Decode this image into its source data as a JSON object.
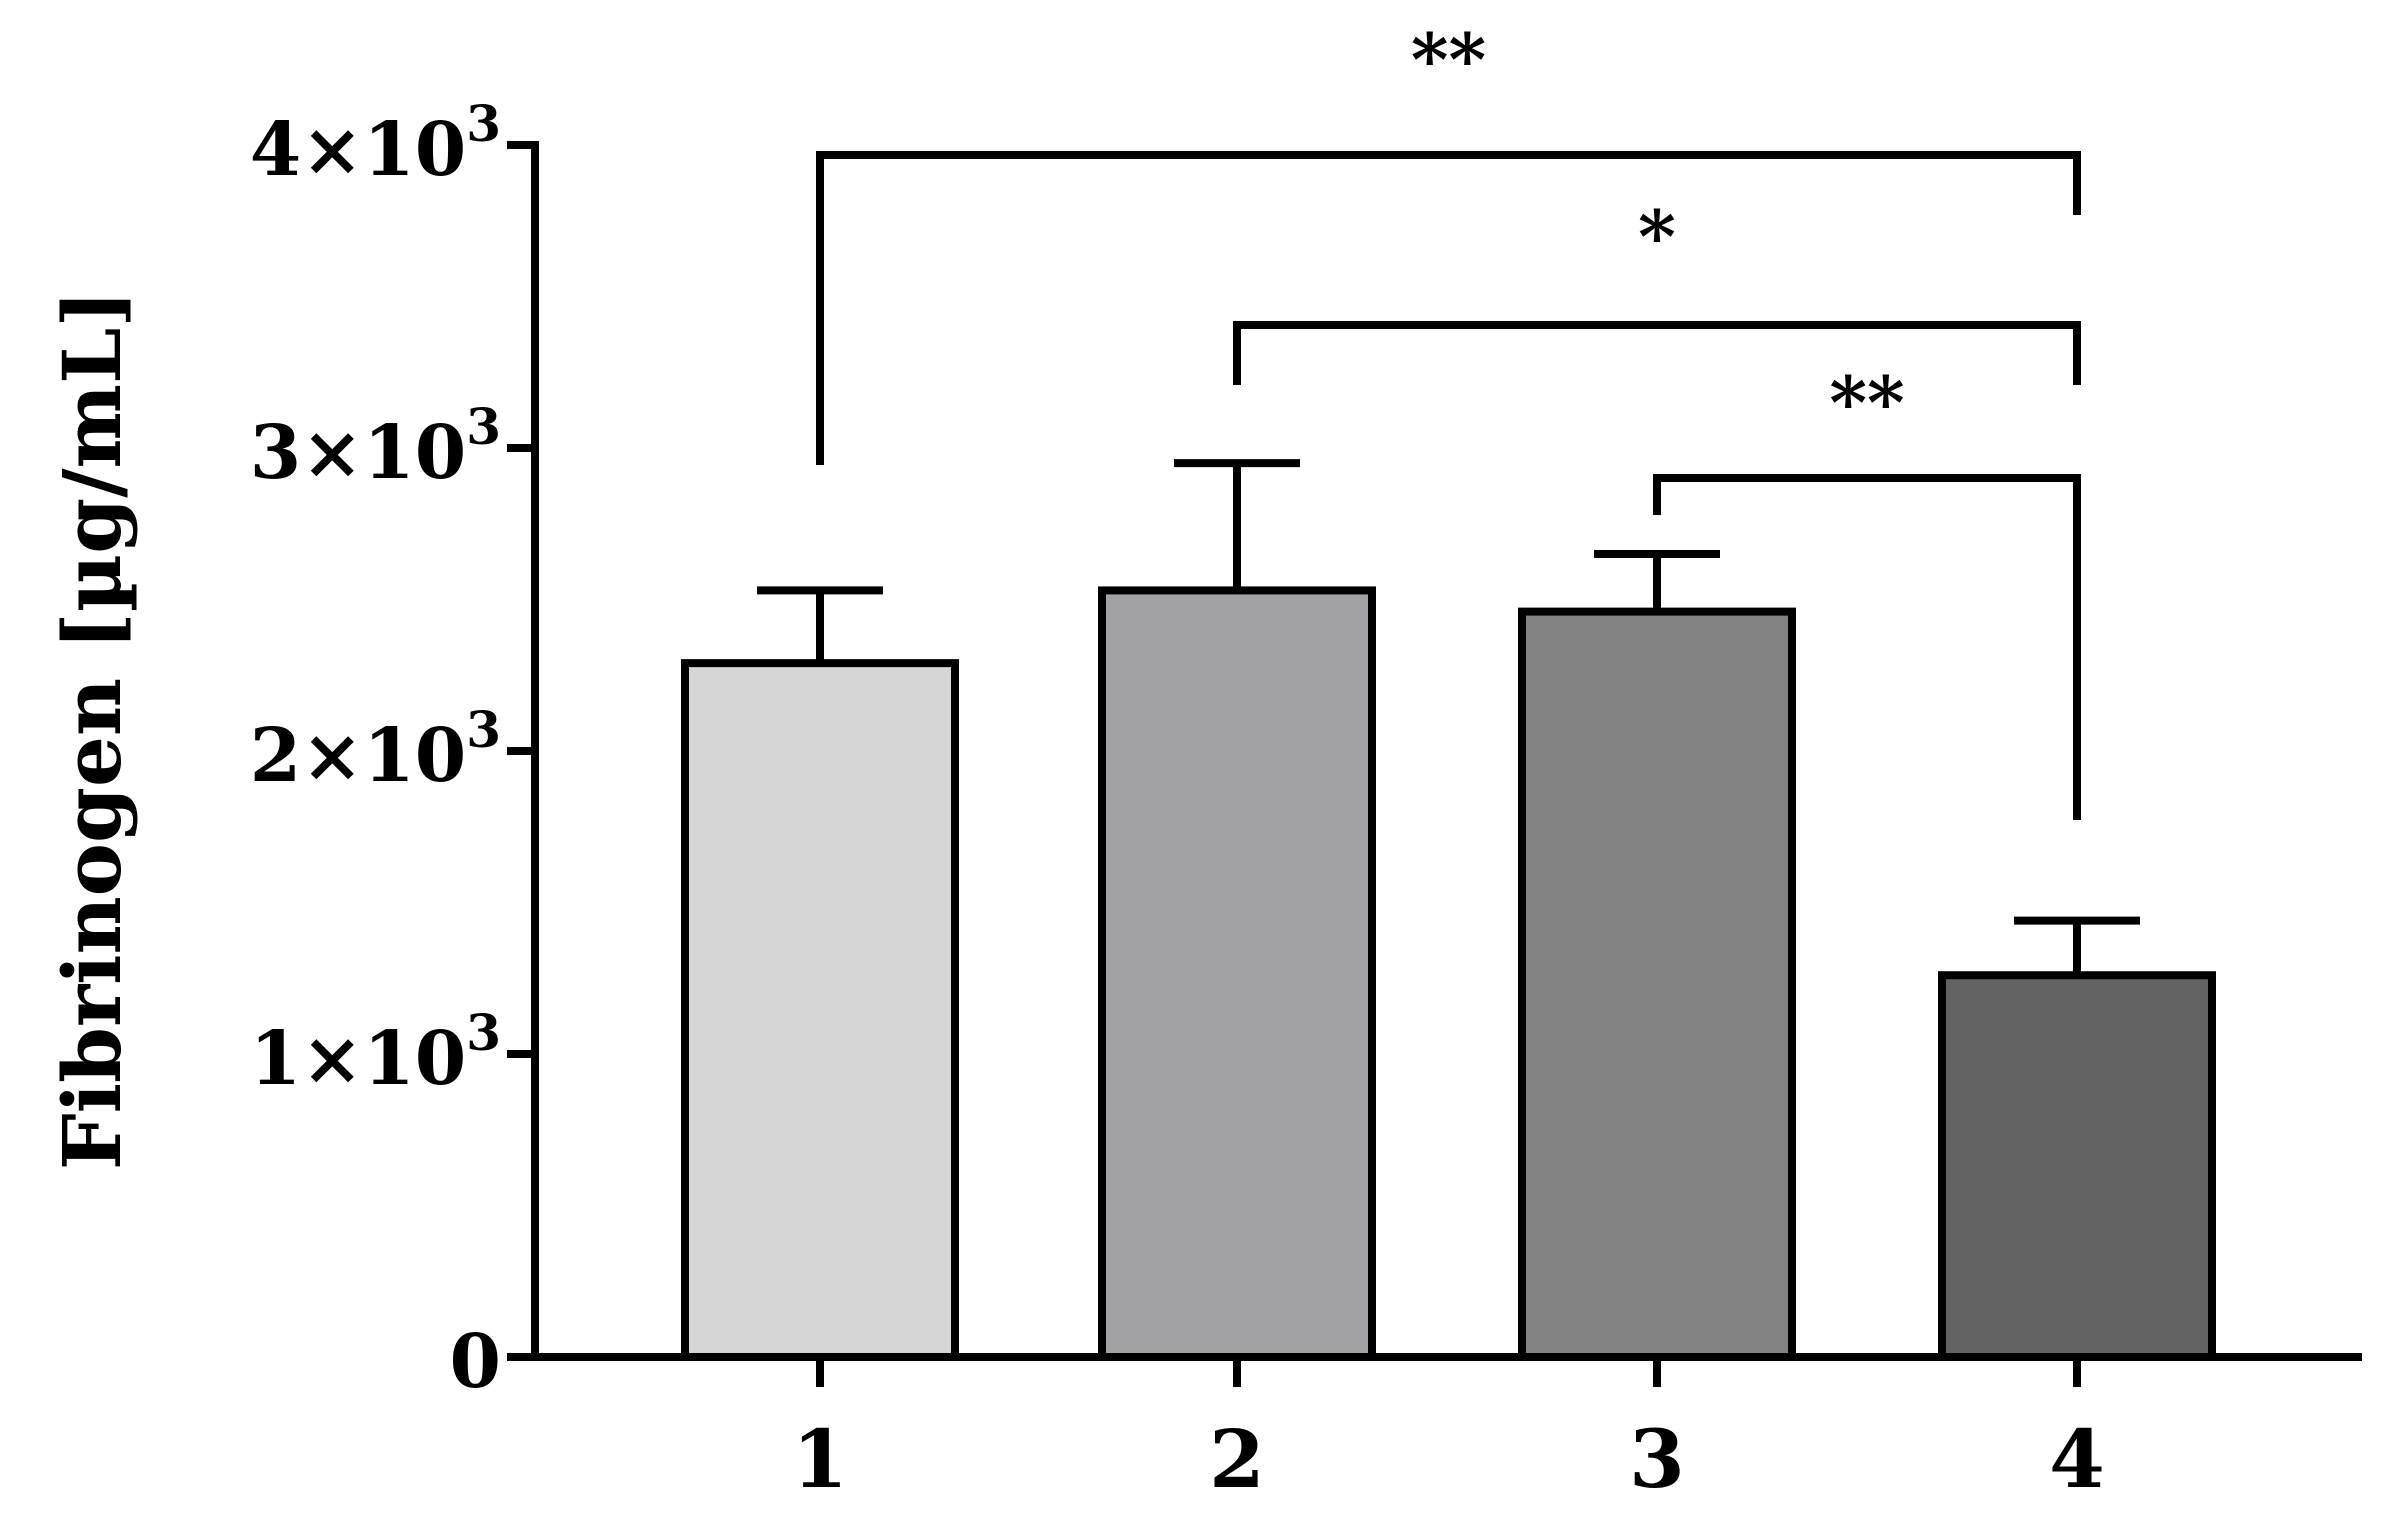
{
  "chart_data": {
    "type": "bar",
    "categories": [
      "1",
      "2",
      "3",
      "4"
    ],
    "values": [
      2290,
      2530,
      2460,
      1260
    ],
    "errors": [
      240,
      420,
      190,
      180
    ],
    "bar_colors": [
      "#d6d6d6",
      "#a2a1a6",
      "#838383",
      "#636363"
    ],
    "title": "",
    "xlabel": "",
    "ylabel": "Fibrinogen [µg/mL]",
    "ylim": [
      0,
      4000
    ],
    "yticks": [
      {
        "value": 0,
        "mantissa": "0",
        "times": "",
        "base": "",
        "exp": ""
      },
      {
        "value": 1000,
        "mantissa": "1",
        "times": "×",
        "base": "10",
        "exp": "3"
      },
      {
        "value": 2000,
        "mantissa": "2",
        "times": "×",
        "base": "10",
        "exp": "3"
      },
      {
        "value": 3000,
        "mantissa": "3",
        "times": "×",
        "base": "10",
        "exp": "3"
      },
      {
        "value": 4000,
        "mantissa": "4",
        "times": "×",
        "base": "10",
        "exp": "3"
      }
    ],
    "significance": [
      {
        "from": "1",
        "to": "4",
        "label": "**"
      },
      {
        "from": "2",
        "to": "4",
        "label": "*"
      },
      {
        "from": "3",
        "to": "4",
        "label": "**"
      }
    ],
    "grid": false,
    "legend": "none"
  }
}
